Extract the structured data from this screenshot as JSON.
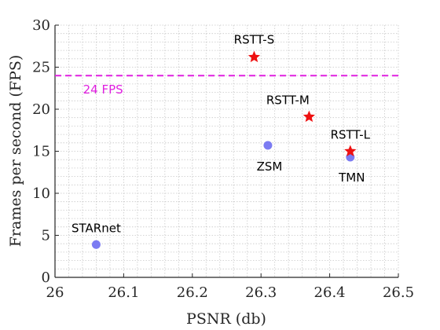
{
  "chart_data": {
    "type": "scatter",
    "xlabel": "PSNR (db)",
    "ylabel": "Frames per second (FPS)",
    "xlim": [
      26,
      26.5
    ],
    "ylim": [
      0,
      30
    ],
    "x_ticks": [
      "26",
      "26.1",
      "26.2",
      "26.3",
      "26.4",
      "26.5"
    ],
    "y_ticks": [
      "0",
      "5",
      "10",
      "15",
      "20",
      "25",
      "30"
    ],
    "grid": "minor dotted",
    "reference_line": {
      "y": 24,
      "label": "24 FPS",
      "color": "#e020e0",
      "style": "dashed"
    },
    "points": [
      {
        "label": "STARnet",
        "x": 26.06,
        "y": 3.9,
        "marker": "circle",
        "color": "#7b7bf2"
      },
      {
        "label": "ZSM",
        "x": 26.31,
        "y": 15.7,
        "marker": "circle",
        "color": "#7b7bf2"
      },
      {
        "label": "TMN",
        "x": 26.43,
        "y": 14.3,
        "marker": "circle",
        "color": "#7b7bf2"
      },
      {
        "label": "RSTT-S",
        "x": 26.29,
        "y": 26.2,
        "marker": "star",
        "color": "#ee1111"
      },
      {
        "label": "RSTT-M",
        "x": 26.37,
        "y": 19.1,
        "marker": "star",
        "color": "#ee1111"
      },
      {
        "label": "RSTT-L",
        "x": 26.43,
        "y": 15.0,
        "marker": "star",
        "color": "#ee1111"
      }
    ]
  }
}
